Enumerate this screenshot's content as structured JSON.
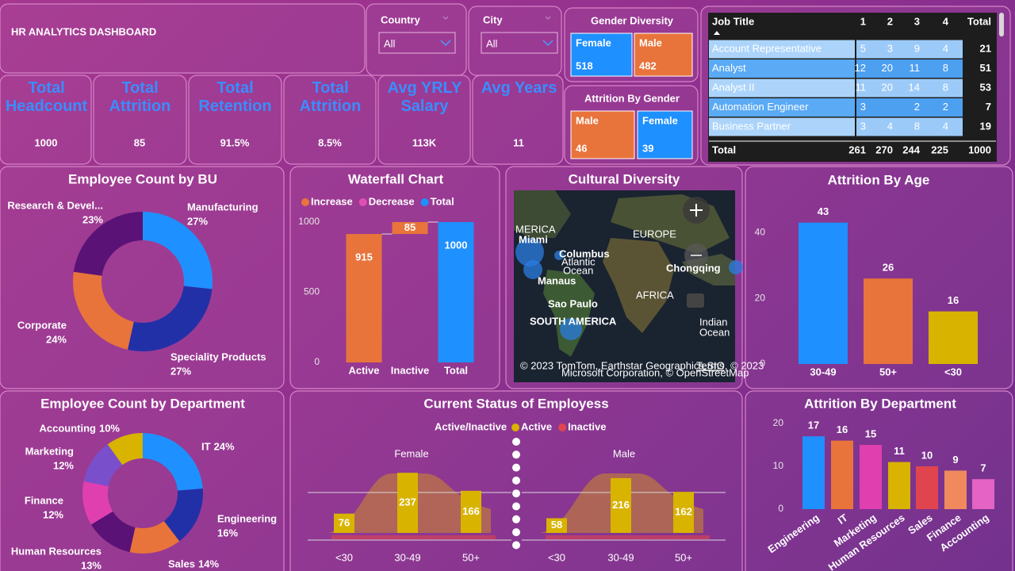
{
  "header": {
    "title": "HR ANALYTICS DASHBOARD"
  },
  "slicers": [
    {
      "label": "Country",
      "value": "All"
    },
    {
      "label": "City",
      "value": "All"
    }
  ],
  "kpis": [
    {
      "label": "Total Headcount",
      "value": 1000
    },
    {
      "label": "Total Attrition",
      "value": 85
    },
    {
      "label": "Total Retention",
      "value": "91.5%"
    },
    {
      "label": "Total Attrition",
      "value": "8.5%"
    },
    {
      "label": "Avg YRLY Salary",
      "value": "113K"
    },
    {
      "label": "Avg Years",
      "value": 11
    }
  ],
  "gender_diversity": {
    "title": "Gender Diversity",
    "items": [
      {
        "label": "Female",
        "value": 518,
        "color": "#1e90ff"
      },
      {
        "label": "Male",
        "value": 482,
        "color": "#e8743b"
      }
    ]
  },
  "attrition_by_gender": {
    "title": "Attrition By Gender",
    "items": [
      {
        "label": "Male",
        "value": 46,
        "color": "#e8743b"
      },
      {
        "label": "Female",
        "value": 39,
        "color": "#1e90ff"
      }
    ]
  },
  "table": {
    "columns": [
      "Job Title",
      "1",
      "2",
      "3",
      "4",
      "Total"
    ],
    "rows": [
      [
        "Account Representative",
        5,
        3,
        9,
        4,
        21
      ],
      [
        "Analyst",
        12,
        20,
        11,
        8,
        51
      ],
      [
        "Analyst II",
        11,
        20,
        14,
        8,
        53
      ],
      [
        "Automation Engineer",
        3,
        null,
        2,
        2,
        7
      ],
      [
        "Business Partner",
        3,
        4,
        8,
        4,
        19
      ]
    ],
    "total": [
      "Total",
      261,
      270,
      244,
      225,
      1000
    ]
  },
  "map": {
    "title": "Cultural Diversity",
    "labels": [
      "MERICA",
      "Miami",
      "Columbus",
      "Atlantic",
      "Ocean",
      "Manaus",
      "Sao Paulo",
      "SOUTH AMERICA",
      "EUROPE",
      "Chongqing",
      "AFRICA",
      "Indian",
      "Ocean"
    ],
    "attribution": [
      "© 2023 TomTom, Earthstar Geographics SIO, © 2023",
      "Microsoft Corporation, © OpenStreetMap"
    ],
    "terms": "Terms"
  },
  "chart_data": [
    {
      "type": "donut",
      "title": "Employee Count by BU",
      "categories": [
        "Manufacturing",
        "Speciality Products",
        "Corporate",
        "Research & Devel..."
      ],
      "values": [
        27,
        27,
        24,
        23
      ],
      "value_labels": [
        "27%",
        "27%",
        "24%",
        "23%"
      ],
      "colors": [
        "#1e90ff",
        "#2230a8",
        "#e8743b",
        "#5a1276"
      ]
    },
    {
      "type": "waterfall",
      "title": "Waterfall Chart",
      "legend": [
        {
          "name": "Increase",
          "color": "#e8743b"
        },
        {
          "name": "Decrease",
          "color": "#e24fb2"
        },
        {
          "name": "Total",
          "color": "#1e90ff"
        }
      ],
      "categories": [
        "Active",
        "Inactive",
        "Total"
      ],
      "values": [
        915,
        85,
        1000
      ],
      "colors": [
        "#e8743b",
        "#e8743b",
        "#1e90ff"
      ],
      "ylim": [
        0,
        1000
      ],
      "yticks": [
        0,
        500,
        1000
      ]
    },
    {
      "type": "bar",
      "title": "Attrition By Age",
      "categories": [
        "30-49",
        "50+",
        "<30"
      ],
      "values": [
        43,
        26,
        16
      ],
      "colors": [
        "#1e90ff",
        "#e8743b",
        "#d8b300"
      ],
      "ylim": [
        0,
        48
      ],
      "yticks": [
        0,
        20,
        40
      ]
    },
    {
      "type": "donut",
      "title": "Employee Count by Department",
      "categories": [
        "IT",
        "Engineering",
        "Sales",
        "Human Resources",
        "Finance",
        "Marketing",
        "Accounting"
      ],
      "values": [
        24,
        16,
        14,
        13,
        12,
        12,
        10
      ],
      "value_labels": [
        "24%",
        "16%",
        "14%",
        "13%",
        "12%",
        "12%",
        "10%"
      ],
      "colors": [
        "#1e90ff",
        "#2230a8",
        "#e8743b",
        "#5a1276",
        "#e03fb0",
        "#7a4fcb",
        "#d8b300"
      ]
    },
    {
      "type": "panel-bar",
      "title": "Current Status of Employess",
      "legend_title": "Active/Inactive",
      "legend": [
        {
          "name": "Active",
          "color": "#d8b300"
        },
        {
          "name": "Inactive",
          "color": "#e0454f"
        }
      ],
      "panels": [
        {
          "name": "Female",
          "categories": [
            "<30",
            "30-49",
            "50+"
          ],
          "values": [
            76,
            237,
            166
          ]
        },
        {
          "name": "Male",
          "categories": [
            "<30",
            "30-49",
            "50+"
          ],
          "values": [
            58,
            216,
            162
          ]
        }
      ],
      "ylim": [
        0,
        250
      ]
    },
    {
      "type": "bar",
      "title": "Attrition By Department",
      "categories": [
        "Engineering",
        "IT",
        "Marketing",
        "Human Resources",
        "Sales",
        "Finance",
        "Accounting"
      ],
      "values": [
        17,
        16,
        15,
        11,
        10,
        9,
        7
      ],
      "colors": [
        "#1e90ff",
        "#e8743b",
        "#e03fb0",
        "#d8b300",
        "#e0454f",
        "#f08a5d",
        "#e463c4"
      ],
      "ylim": [
        0,
        20
      ],
      "yticks": [
        0,
        10,
        20
      ]
    }
  ]
}
